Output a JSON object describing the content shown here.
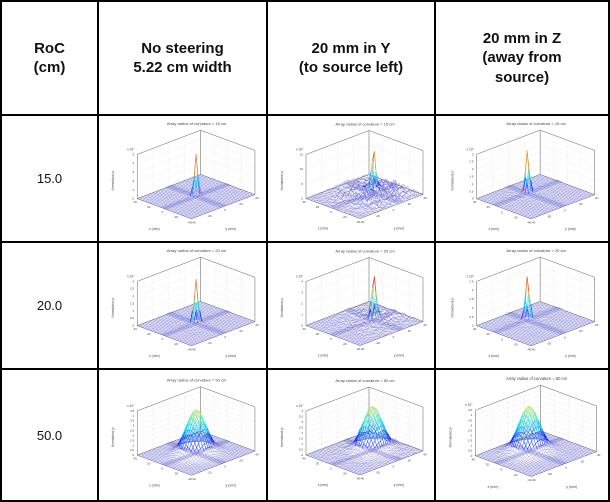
{
  "figure": {
    "header": {
      "columns": [
        {
          "label": "RoC\n(cm)"
        },
        {
          "label": "No steering\n5.22 cm width"
        },
        {
          "label": "20 mm in Y\n(to source left)"
        },
        {
          "label": "20 mm in Z\n(away from\nsource)"
        }
      ]
    },
    "rows": [
      {
        "roc": "15.0"
      },
      {
        "roc": "20.0"
      },
      {
        "roc": "50.0"
      }
    ]
  },
  "colors": {
    "mesh_base": "rgba(104,104,208,0.8)",
    "band_fill": "rgba(88,88,200,0.30)",
    "grid_dotted": "#c7c7c7",
    "axis_edge": "#555",
    "text": "#444"
  },
  "chart_data": [
    {
      "type": "surface",
      "row_roc": "15.0",
      "steering": "No steering",
      "title": "Array radius of curvature = 15 cm",
      "xlabel": "y (mm)",
      "ylabel": "z (mm)",
      "zlabel": "Normalized p²",
      "scale_label": "x 10⁷",
      "x_range": [
        -40,
        40
      ],
      "y_range": [
        -40,
        40
      ],
      "xy_ticks": [
        -40,
        -20,
        0,
        20,
        40
      ],
      "z_ticks": [
        0,
        1,
        2,
        3,
        4,
        5
      ],
      "peak": {
        "y_mm": 0,
        "z_mm": 0,
        "height_ticks": 4.7,
        "sigma_mm": 2.0
      },
      "render": {
        "noise": 0.05,
        "nenv": 18,
        "ridge": 0.07,
        "cmax": 1,
        "seed": 1
      }
    },
    {
      "type": "surface",
      "row_roc": "15.0",
      "steering": "20 mm in Y",
      "title": "Array radius of curvature = 15 cm",
      "xlabel": "y (mm)",
      "ylabel": "z (mm)",
      "zlabel": "Normalized p²",
      "scale_label": "x 10⁶",
      "x_range": [
        -40,
        40
      ],
      "y_range": [
        -40,
        40
      ],
      "xy_ticks": [
        -40,
        -20,
        0,
        20,
        40
      ],
      "z_ticks": [
        0,
        5,
        10,
        15
      ],
      "peak": {
        "y_mm": 12,
        "z_mm": 0,
        "height_ticks": 13,
        "sigma_mm": 2.2
      },
      "render": {
        "noise": 4.2,
        "nenv": 24,
        "ridge": 0.5,
        "cmax": 1,
        "seed": 2
      }
    },
    {
      "type": "surface",
      "row_roc": "15.0",
      "steering": "20 mm in Z",
      "title": "Array radius of curvature = 15 cm",
      "xlabel": "y (mm)",
      "ylabel": "z (mm)",
      "zlabel": "Normalized p²",
      "scale_label": "x 10⁷",
      "x_range": [
        -40,
        40
      ],
      "y_range": [
        -40,
        40
      ],
      "xy_ticks": [
        -40,
        -20,
        0,
        20,
        40
      ],
      "z_ticks": [
        0,
        0.5,
        1,
        1.5,
        2,
        2.5,
        3
      ],
      "peak": {
        "y_mm": 0,
        "z_mm": 12,
        "height_ticks": 2.85,
        "sigma_mm": 2.0
      },
      "render": {
        "noise": 0.08,
        "nenv": 18,
        "ridge": 0.05,
        "cmax": 1,
        "seed": 3
      }
    },
    {
      "type": "surface",
      "row_roc": "20.0",
      "steering": "No steering",
      "title": "Array radius of curvature = 20 cm",
      "xlabel": "y (mm)",
      "ylabel": "z (mm)",
      "zlabel": "Normalized p²",
      "scale_label": "x 10⁷",
      "x_range": [
        -40,
        40
      ],
      "y_range": [
        -40,
        40
      ],
      "xy_ticks": [
        -40,
        -20,
        0,
        20,
        40
      ],
      "z_ticks": [
        0,
        0.5,
        1,
        1.5,
        2,
        2.5,
        3
      ],
      "peak": {
        "y_mm": 0,
        "z_mm": 0,
        "height_ticks": 2.9,
        "sigma_mm": 2.2
      },
      "render": {
        "noise": 0.05,
        "nenv": 18,
        "ridge": 0.05,
        "cmax": 1,
        "seed": 4
      }
    },
    {
      "type": "surface",
      "row_roc": "20.0",
      "steering": "20 mm in Y",
      "title": "Array radius of curvature = 20 cm",
      "xlabel": "y (mm)",
      "ylabel": "z (mm)",
      "zlabel": "Normalized p²",
      "scale_label": "x 10⁷",
      "x_range": [
        -40,
        40
      ],
      "y_range": [
        -40,
        40
      ],
      "xy_ticks": [
        -40,
        -20,
        0,
        20,
        40
      ],
      "z_ticks": [
        0,
        1,
        2,
        3,
        4
      ],
      "peak": {
        "y_mm": 12,
        "z_mm": 0,
        "height_ticks": 3.8,
        "sigma_mm": 2.4
      },
      "render": {
        "noise": 0.5,
        "nenv": 22,
        "ridge": 0.07,
        "cmax": 1,
        "seed": 5
      }
    },
    {
      "type": "surface",
      "row_roc": "20.0",
      "steering": "20 mm in Z",
      "title": "Array radius of curvature = 20 cm",
      "xlabel": "y (mm)",
      "ylabel": "z (mm)",
      "zlabel": "Normalized p²",
      "scale_label": "x 10⁷",
      "x_range": [
        -40,
        40
      ],
      "y_range": [
        -40,
        40
      ],
      "xy_ticks": [
        -40,
        -20,
        0,
        20,
        40
      ],
      "z_ticks": [
        0,
        0.5,
        1,
        1.5,
        2,
        2.5
      ],
      "peak": {
        "y_mm": 0,
        "z_mm": 12,
        "height_ticks": 2.4,
        "sigma_mm": 2.2
      },
      "render": {
        "noise": 0.06,
        "nenv": 18,
        "ridge": 0.05,
        "cmax": 1,
        "seed": 6
      }
    },
    {
      "type": "surface",
      "row_roc": "50.0",
      "steering": "No steering",
      "title": "Array radius of curvature = 50 cm",
      "xlabel": "y (mm)",
      "ylabel": "z (mm)",
      "zlabel": "Normalized p²",
      "scale_label": "x 10⁷",
      "x_range": [
        -40,
        40
      ],
      "y_range": [
        -40,
        40
      ],
      "xy_ticks": [
        -40,
        -20,
        0,
        20,
        40
      ],
      "z_ticks": [
        0,
        0.5,
        1,
        1.5,
        2,
        2.5,
        3,
        3.5,
        4,
        4.5
      ],
      "peak": {
        "y_mm": 0,
        "z_mm": 0,
        "height_ticks": 4.3,
        "sigma_mm": 10
      },
      "render": {
        "noise": 0.06,
        "nenv": 25,
        "ridge": 0.05,
        "cmax": 0.62,
        "seed": 7
      }
    },
    {
      "type": "surface",
      "row_roc": "50.0",
      "steering": "20 mm in Y",
      "title": "Array radius of curvature = 50 cm",
      "xlabel": "y (mm)",
      "ylabel": "z (mm)",
      "zlabel": "Normalized p²",
      "scale_label": "x 10⁷",
      "x_range": [
        -40,
        40
      ],
      "y_range": [
        -40,
        40
      ],
      "xy_ticks": [
        -40,
        -20,
        0,
        20,
        40
      ],
      "z_ticks": [
        0,
        0.5,
        1,
        1.5,
        2,
        2.5,
        3,
        3.5,
        4
      ],
      "peak": {
        "y_mm": 10,
        "z_mm": 0,
        "height_ticks": 3.8,
        "sigma_mm": 10
      },
      "render": {
        "noise": 0.18,
        "nenv": 30,
        "ridge": 0.06,
        "cmax": 0.62,
        "seed": 8
      }
    },
    {
      "type": "surface",
      "row_roc": "50.0",
      "steering": "20 mm in Z",
      "title": "Array radius of curvature = 50 cm",
      "xlabel": "y (mm)",
      "ylabel": "z (mm)",
      "zlabel": "Normalized p²",
      "scale_label": "x 10⁷",
      "x_range": [
        -40,
        40
      ],
      "y_range": [
        -40,
        40
      ],
      "xy_ticks": [
        -40,
        -20,
        0,
        20,
        40
      ],
      "z_ticks": [
        0,
        0.5,
        1,
        1.5,
        2,
        2.5,
        3,
        3.5,
        4,
        4.5
      ],
      "peak": {
        "y_mm": 0,
        "z_mm": 10,
        "height_ticks": 4.3,
        "sigma_mm": 10
      },
      "render": {
        "noise": 0.08,
        "nenv": 25,
        "ridge": 0.05,
        "cmax": 0.62,
        "seed": 9
      }
    }
  ]
}
